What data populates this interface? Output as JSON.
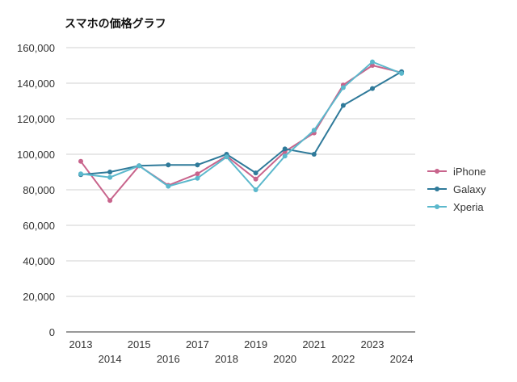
{
  "chart_data": {
    "type": "line",
    "title": "スマホの価格グラフ",
    "xlabel": "",
    "ylabel": "",
    "x": [
      "2013",
      "2014",
      "2015",
      "2016",
      "2017",
      "2018",
      "2019",
      "2020",
      "2021",
      "2022",
      "2023",
      "2024"
    ],
    "yticks": [
      "0",
      "20,000",
      "40,000",
      "60,000",
      "80,000",
      "100,000",
      "120,000",
      "140,000",
      "160,000"
    ],
    "ylim": [
      0,
      160000
    ],
    "grid": true,
    "legend_position": "right",
    "series": [
      {
        "name": "iPhone",
        "color": "#c8648c",
        "values": [
          96000,
          74000,
          93500,
          82500,
          89000,
          99000,
          86000,
          101500,
          112000,
          139000,
          150000,
          146000
        ]
      },
      {
        "name": "Galaxy",
        "color": "#2f7a9a",
        "values": [
          88500,
          90000,
          93500,
          94000,
          94000,
          100000,
          89500,
          103000,
          100000,
          127500,
          137000,
          146500
        ]
      },
      {
        "name": "Xperia",
        "color": "#5bb8cc",
        "values": [
          89000,
          87000,
          93500,
          82000,
          86500,
          98500,
          80000,
          99000,
          113500,
          137500,
          152000,
          145500
        ]
      }
    ]
  }
}
